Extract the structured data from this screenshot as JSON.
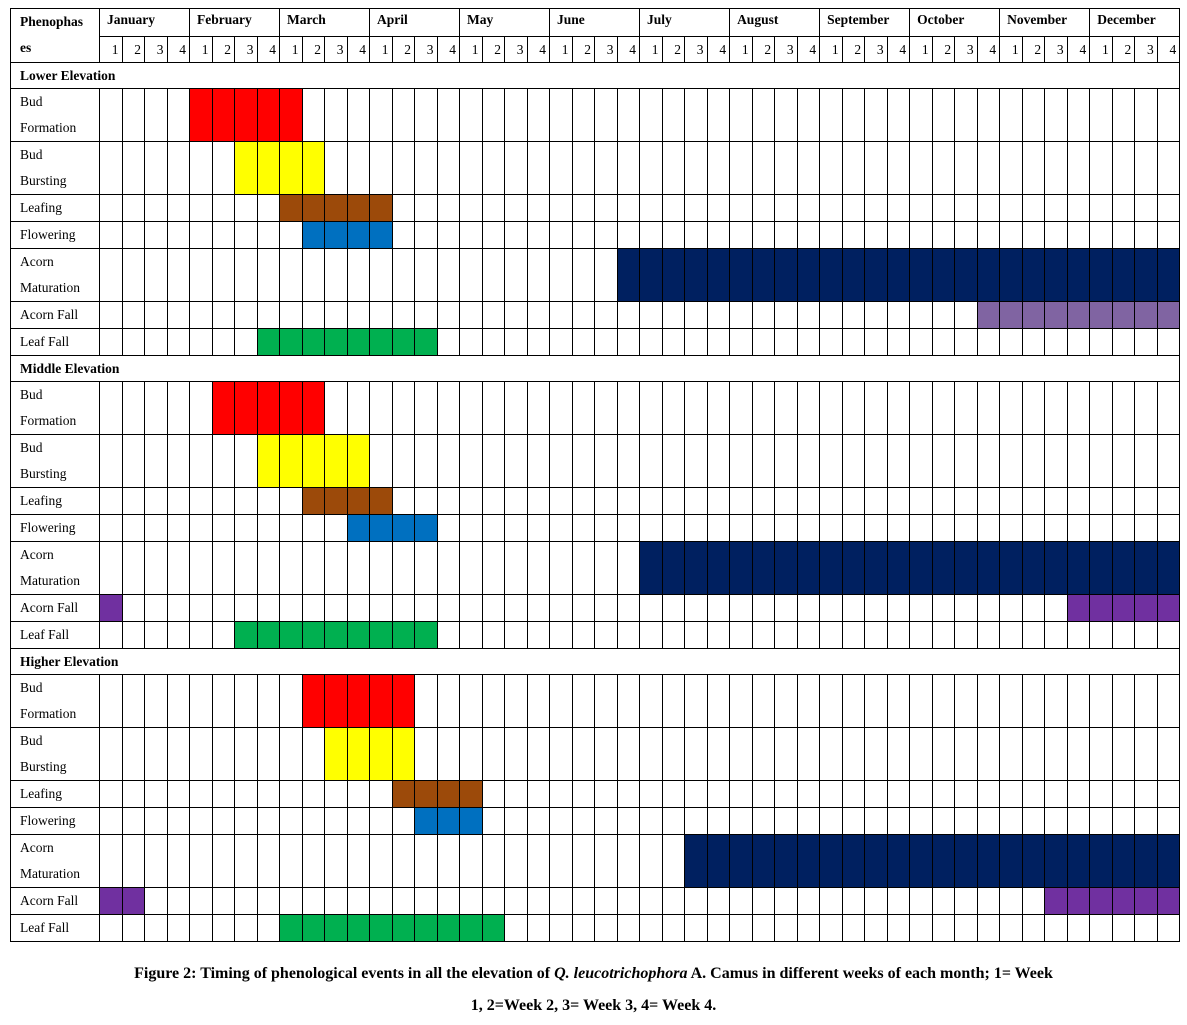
{
  "header": {
    "phenophase_label_line1": "Phenophas",
    "phenophase_label_line2": "es",
    "months": [
      "January",
      "February",
      "March",
      "April",
      "May",
      "June",
      "July",
      "August",
      "September",
      "October",
      "November",
      "December"
    ],
    "weeks": [
      "1",
      "2",
      "3",
      "4"
    ]
  },
  "colors": {
    "bud_formation": "#ff0000",
    "bud_bursting": "#ffff00",
    "leafing": "#9c4a0a",
    "flowering": "#0070c0",
    "acorn_maturation": "#002060",
    "acorn_fall_lower": "#8064a2",
    "acorn_fall": "#7030a0",
    "leaf_fall": "#00b050"
  },
  "sections": [
    {
      "name": "Lower Elevation",
      "rows": [
        {
          "label": [
            "Bud",
            "Formation"
          ],
          "color_key": "bud_formation",
          "spans": [
            [
              5,
              9
            ]
          ]
        },
        {
          "label": [
            "Bud",
            "Bursting"
          ],
          "color_key": "bud_bursting",
          "spans": [
            [
              7,
              10
            ]
          ]
        },
        {
          "label": [
            "Leafing"
          ],
          "color_key": "leafing",
          "spans": [
            [
              9,
              13
            ]
          ]
        },
        {
          "label": [
            "Flowering"
          ],
          "color_key": "flowering",
          "spans": [
            [
              10,
              13
            ]
          ]
        },
        {
          "label": [
            "Acorn",
            "Maturation"
          ],
          "color_key": "acorn_maturation",
          "spans": [
            [
              24,
              48
            ]
          ]
        },
        {
          "label": [
            "Acorn Fall"
          ],
          "color_key": "acorn_fall_lower",
          "spans": [
            [
              40,
              48
            ]
          ]
        },
        {
          "label": [
            "Leaf Fall"
          ],
          "color_key": "leaf_fall",
          "spans": [
            [
              8,
              15
            ]
          ]
        }
      ]
    },
    {
      "name": "Middle Elevation",
      "rows": [
        {
          "label": [
            "Bud",
            "Formation"
          ],
          "color_key": "bud_formation",
          "spans": [
            [
              6,
              10
            ]
          ]
        },
        {
          "label": [
            "Bud",
            "Bursting"
          ],
          "color_key": "bud_bursting",
          "spans": [
            [
              8,
              12
            ]
          ]
        },
        {
          "label": [
            "Leafing"
          ],
          "color_key": "leafing",
          "spans": [
            [
              10,
              13
            ]
          ]
        },
        {
          "label": [
            "Flowering"
          ],
          "color_key": "flowering",
          "spans": [
            [
              12,
              15
            ]
          ]
        },
        {
          "label": [
            "Acorn",
            "Maturation"
          ],
          "color_key": "acorn_maturation",
          "spans": [
            [
              25,
              48
            ]
          ]
        },
        {
          "label": [
            "Acorn Fall"
          ],
          "color_key": "acorn_fall",
          "spans": [
            [
              1,
              1
            ],
            [
              44,
              48
            ]
          ]
        },
        {
          "label": [
            "Leaf Fall"
          ],
          "color_key": "leaf_fall",
          "spans": [
            [
              7,
              15
            ]
          ]
        }
      ]
    },
    {
      "name": "Higher Elevation",
      "rows": [
        {
          "label": [
            "Bud",
            "Formation"
          ],
          "color_key": "bud_formation",
          "spans": [
            [
              10,
              14
            ]
          ]
        },
        {
          "label": [
            "Bud",
            "Bursting"
          ],
          "color_key": "bud_bursting",
          "spans": [
            [
              11,
              14
            ]
          ]
        },
        {
          "label": [
            "Leafing"
          ],
          "color_key": "leafing",
          "spans": [
            [
              14,
              17
            ]
          ]
        },
        {
          "label": [
            "Flowering"
          ],
          "color_key": "flowering",
          "spans": [
            [
              15,
              17
            ]
          ]
        },
        {
          "label": [
            "Acorn",
            "Maturation"
          ],
          "color_key": "acorn_maturation",
          "spans": [
            [
              27,
              48
            ]
          ]
        },
        {
          "label": [
            "Acorn Fall"
          ],
          "color_key": "acorn_fall",
          "spans": [
            [
              1,
              2
            ],
            [
              43,
              48
            ]
          ]
        },
        {
          "label": [
            "Leaf Fall"
          ],
          "color_key": "leaf_fall",
          "spans": [
            [
              9,
              18
            ]
          ]
        }
      ]
    }
  ],
  "caption": {
    "prefix": "Figure 2: Timing of phenological events in all the elevation of ",
    "species": "Q. leucotrichophora",
    "suffix": " A. Camus in different weeks of each month; 1= Week",
    "line2": "1, 2=Week 2, 3= Week 3, 4= Week 4."
  }
}
